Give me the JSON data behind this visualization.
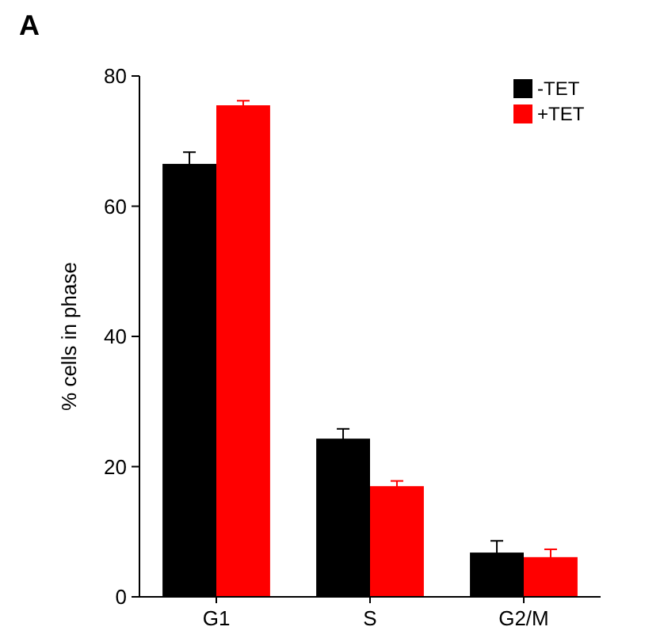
{
  "chart_data": {
    "type": "bar",
    "ylabel": "% cells in phase",
    "annotations": [
      "A"
    ],
    "categories": [
      "G1",
      "S",
      "G2/M"
    ],
    "series": [
      {
        "name": "-TET",
        "color": "#000000",
        "values": [
          66.5,
          24.3,
          6.8
        ],
        "errors": [
          1.8,
          1.5,
          1.8
        ]
      },
      {
        "name": "+TET",
        "color": "#ff0000",
        "values": [
          75.5,
          17,
          6.1
        ],
        "errors": [
          0.7,
          0.8,
          1.2
        ]
      }
    ],
    "ylim": [
      0,
      80
    ],
    "yticks": [
      0,
      20,
      40,
      60,
      80
    ],
    "legend": "top right"
  }
}
